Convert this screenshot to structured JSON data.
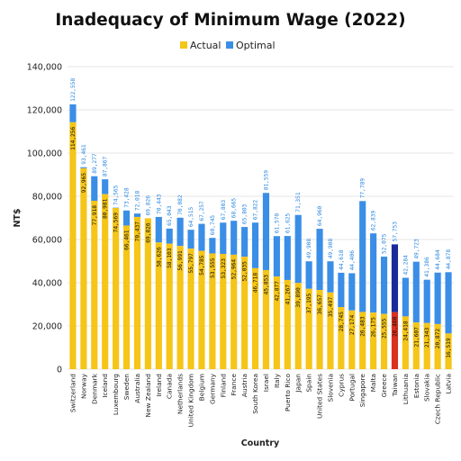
{
  "colors": {
    "actual": "#f5c518",
    "optimal": "#3a8ee6",
    "highlight": "#1a2a9a",
    "highlight_actual": "#d93020",
    "grid": "#e6e6e6"
  },
  "chart_data": {
    "type": "bar",
    "title": "Inadequacy of Minimum Wage (2022)",
    "xlabel": "Country",
    "ylabel": "NT$",
    "ylim": [
      0,
      140000
    ],
    "yticks": [
      "0",
      "20,000",
      "40,000",
      "60,000",
      "80,000",
      "100,000",
      "120,000",
      "140,000"
    ],
    "grid": true,
    "legend_position": "top-center",
    "highlight_category": "Taiwan",
    "categories": [
      "Switzerland",
      "Norway",
      "Denmark",
      "Iceland",
      "Luxembourg",
      "Sweden",
      "Australia",
      "New Zealand",
      "Ireland",
      "Canada",
      "Netherlands",
      "United Kingdom",
      "Belgium",
      "Germany",
      "Finland",
      "France",
      "Austria",
      "South Korea",
      "Israel",
      "Italy",
      "Puerto Rico",
      "Japan",
      "Spain",
      "United States",
      "Slovenia",
      "Cyprus",
      "Portugal",
      "Singapore",
      "Malta",
      "Greece",
      "Taiwan",
      "Lithuania",
      "Estonia",
      "Slovakia",
      "Czech Republic",
      "Latvia"
    ],
    "series": [
      {
        "name": "Actual",
        "values": [
          114256,
          92965,
          77918,
          80981,
          74569,
          66461,
          70437,
          69826,
          58626,
          58103,
          56991,
          55797,
          54785,
          53555,
          53323,
          52964,
          52035,
          46718,
          45853,
          42877,
          41267,
          39890,
          37195,
          36657,
          35497,
          28745,
          27174,
          26483,
          26175,
          25555,
          26400,
          24418,
          21607,
          21343,
          20872,
          16519
        ],
        "labels": [
          "114,256",
          "92,965",
          "77,918",
          "80,981",
          "74,569",
          "66,461",
          "70,437",
          "69,826",
          "58,626",
          "58,103",
          "56,991",
          "55,797",
          "54,785",
          "53,555",
          "53,323",
          "52,964",
          "52,035",
          "46,718",
          "45,853",
          "42,877",
          "41,267",
          "39,890",
          "37,195",
          "36,657",
          "35,497",
          "28,745",
          "27,174",
          "26,483",
          "26,175",
          "25,555",
          "26,400",
          "24,418",
          "21,607",
          "21,343",
          "20,872",
          "16,519"
        ]
      },
      {
        "name": "Optimal",
        "values": [
          122558,
          93461,
          89277,
          87867,
          74565,
          73428,
          72018,
          69826,
          70443,
          65043,
          70082,
          64515,
          67257,
          60745,
          67803,
          68665,
          65803,
          67822,
          81559,
          61570,
          61625,
          71351,
          49908,
          64960,
          49908,
          44618,
          44406,
          77789,
          62839,
          52075,
          57753,
          42284,
          49723,
          41386,
          44684,
          44878
        ],
        "labels": [
          "122,558",
          "93,461",
          "89,277",
          "87,867",
          "74,565",
          "73,428",
          "72,018",
          "69,826",
          "70,443",
          "65,043",
          "70,082",
          "64,515",
          "67,257",
          "60,745",
          "67,803",
          "68,665",
          "65,803",
          "67,822",
          "81,559",
          "61,570",
          "61,625",
          "71,351",
          "49,908",
          "64,960",
          "49,908",
          "44,618",
          "44,406",
          "77,789",
          "62,839",
          "52,075",
          "57,753",
          "42,284",
          "49,723",
          "41,386",
          "44,684",
          "44,878"
        ]
      }
    ]
  }
}
